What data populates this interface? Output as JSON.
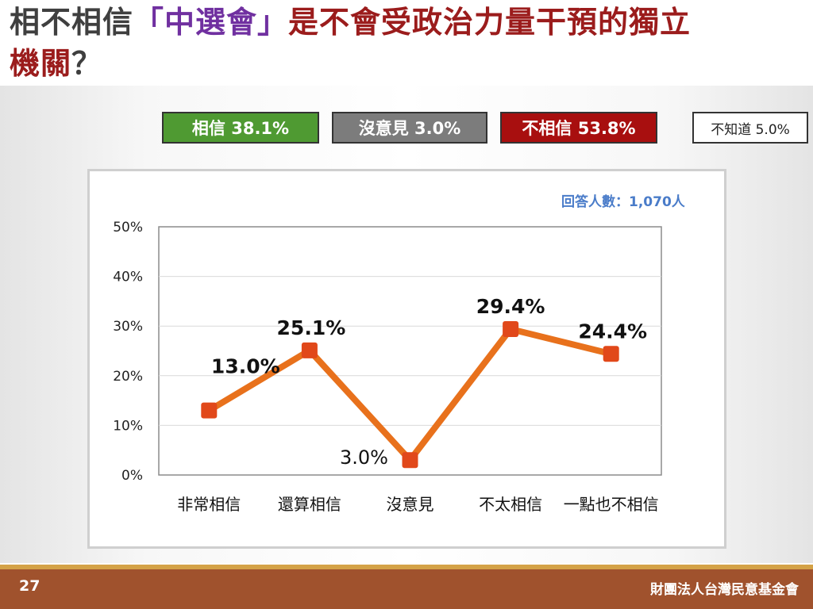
{
  "slide": {
    "title_pre": "相不相信",
    "title_quote": "「中選會」",
    "title_mid": "是不會受政治力量干預的獨立",
    "title_tail": "機關",
    "title_end": "？",
    "page_number": "27",
    "organization": "財團法人台灣民意基金會",
    "respondents_label": "回答人數：1,070人"
  },
  "legend": {
    "trust": "相信 38.1%",
    "neutral": "沒意見 3.0%",
    "distrust": "不相信 53.8%",
    "unknown": "不知道 5.0%"
  },
  "colors": {
    "line": "#e8711c",
    "marker": "#e1481a",
    "trust": "#4f9a32",
    "neutral": "#7c7c7c",
    "distrust": "#a80f0f",
    "title_highlight_quote": "#7030a0",
    "title_highlight_tail": "#9b1c1c"
  },
  "chart_data": {
    "type": "line",
    "categories": [
      "非常相信",
      "還算相信",
      "沒意見",
      "不太相信",
      "一點也不相信"
    ],
    "values": [
      13.0,
      25.1,
      3.0,
      29.4,
      24.4
    ],
    "data_labels": [
      "13.0%",
      "25.1%",
      "3.0%",
      "29.4%",
      "24.4%"
    ],
    "ylim": [
      0,
      50
    ],
    "yticks": [
      0,
      10,
      20,
      30,
      40,
      50
    ],
    "ytick_labels": [
      "0%",
      "10%",
      "20%",
      "30%",
      "40%",
      "50%"
    ],
    "grid": true,
    "legend": "none"
  }
}
